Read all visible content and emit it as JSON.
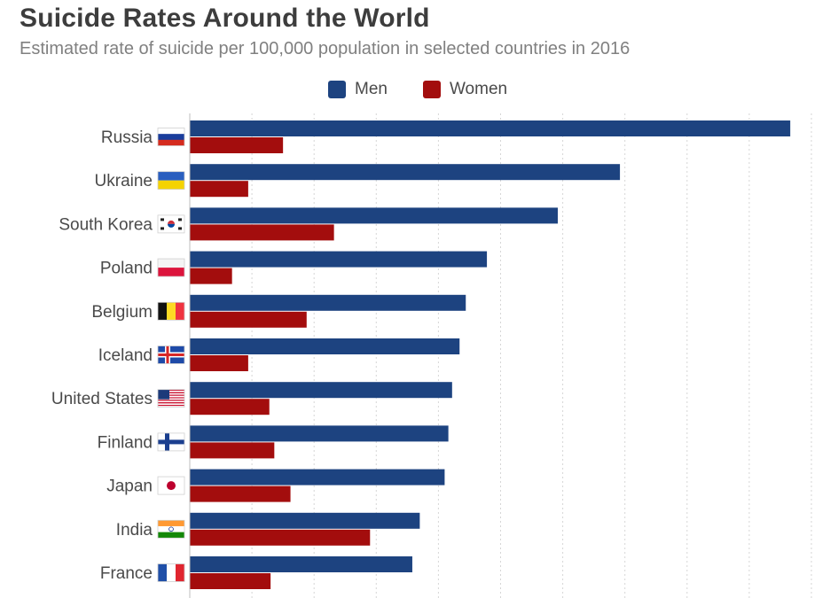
{
  "chart_data": {
    "type": "bar",
    "orientation": "horizontal",
    "title": "Suicide Rates Around the World",
    "subtitle": "Estimated rate of suicide per 100,000 population in selected countries in 2016",
    "categories": [
      "Russia",
      "Ukraine",
      "South Korea",
      "Poland",
      "Belgium",
      "Iceland",
      "United States",
      "Finland",
      "Japan",
      "India",
      "France"
    ],
    "series": [
      {
        "name": "Men",
        "color": "#1d4380",
        "values": [
          48.3,
          34.6,
          29.6,
          23.9,
          22.2,
          21.7,
          21.1,
          20.8,
          20.5,
          18.5,
          17.9
        ]
      },
      {
        "name": "Women",
        "color": "#a30d0d",
        "values": [
          7.5,
          4.7,
          11.6,
          3.4,
          9.4,
          4.7,
          6.4,
          6.8,
          8.1,
          14.5,
          6.5
        ]
      }
    ],
    "xlim": [
      0,
      50
    ],
    "grid": true,
    "legend_position": "top-center"
  },
  "flags": [
    "russia-flag-icon",
    "ukraine-flag-icon",
    "south-korea-flag-icon",
    "poland-flag-icon",
    "belgium-flag-icon",
    "iceland-flag-icon",
    "united-states-flag-icon",
    "finland-flag-icon",
    "japan-flag-icon",
    "india-flag-icon",
    "france-flag-icon"
  ]
}
